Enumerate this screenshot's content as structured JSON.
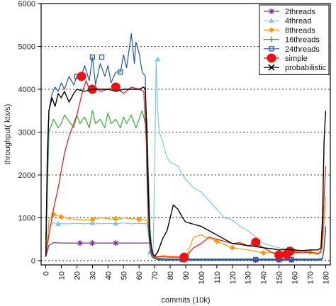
{
  "chart_data": {
    "type": "line",
    "title": "",
    "xlabel": "commits (10k)",
    "ylabel": "throughput( ktx/s)",
    "xlim": [
      -3,
      183
    ],
    "ylim": [
      -100,
      6000
    ],
    "x_ticks": [
      0,
      10,
      20,
      30,
      40,
      50,
      60,
      70,
      80,
      90,
      100,
      110,
      120,
      130,
      140,
      150,
      160,
      170,
      180
    ],
    "x_tick_labels": [
      "0",
      "10",
      "20",
      "30",
      "40",
      "50",
      "60",
      "70",
      "80",
      "90",
      "100",
      "110",
      "120",
      "130",
      "140",
      "150",
      "160",
      "170",
      "180"
    ],
    "y_ticks": [
      0,
      1000,
      2000,
      3000,
      4000,
      5000,
      6000
    ],
    "y_tick_labels": [
      "0",
      "1000",
      "2000",
      "3000",
      "4000",
      "5000",
      "6000"
    ],
    "grid": "horizontal dotted",
    "legend_position": "top-right",
    "series": [
      {
        "name": "2threads",
        "color": "#7b3294",
        "marker": "star",
        "x": [
          0,
          2,
          5,
          10,
          20,
          30,
          40,
          50,
          60,
          65,
          67,
          68,
          69,
          70,
          72,
          75,
          80,
          90,
          100,
          110,
          120,
          130,
          140,
          150,
          160,
          170,
          175,
          177,
          178,
          179,
          180
        ],
        "y": [
          80,
          350,
          420,
          410,
          410,
          410,
          410,
          410,
          410,
          410,
          410,
          300,
          150,
          50,
          20,
          10,
          10,
          10,
          10,
          10,
          10,
          10,
          10,
          10,
          10,
          10,
          10,
          15,
          60,
          300,
          800
        ],
        "marker_x": [
          22,
          30,
          45,
          89,
          135,
          150,
          158
        ],
        "marker_y": [
          410,
          410,
          410,
          10,
          10,
          10,
          10
        ]
      },
      {
        "name": "4thread",
        "color": "#7ec8e3",
        "marker": "triangle",
        "x": [
          0,
          2,
          5,
          10,
          15,
          20,
          25,
          30,
          35,
          40,
          45,
          50,
          55,
          60,
          65,
          66,
          67,
          68,
          69,
          70,
          71,
          72,
          73,
          75,
          78,
          80,
          85,
          88,
          90,
          95,
          100,
          105,
          110,
          115,
          120,
          125,
          130,
          135,
          140,
          145,
          150,
          155,
          160,
          165,
          170,
          175,
          178,
          179,
          180
        ],
        "y": [
          100,
          800,
          880,
          860,
          860,
          870,
          860,
          880,
          860,
          870,
          860,
          880,
          860,
          870,
          860,
          600,
          300,
          150,
          120,
          2000,
          4700,
          3500,
          3000,
          2800,
          2400,
          2300,
          2200,
          2000,
          1900,
          1700,
          1600,
          1400,
          1200,
          1000,
          950,
          800,
          700,
          550,
          400,
          350,
          300,
          260,
          230,
          220,
          200,
          180,
          300,
          900,
          1300
        ],
        "marker_x": [
          8,
          30,
          45,
          67,
          72
        ],
        "marker_y": [
          860,
          880,
          870,
          200,
          4700
        ]
      },
      {
        "name": "8threads",
        "color": "#ff9900",
        "marker": "diamond",
        "x": [
          0,
          2,
          5,
          10,
          15,
          20,
          25,
          30,
          35,
          40,
          45,
          50,
          55,
          60,
          65,
          66,
          67,
          68,
          69,
          70,
          72,
          75,
          80,
          85,
          88,
          90,
          95,
          100,
          110,
          120,
          130,
          140,
          150,
          160,
          170,
          175,
          178,
          179,
          180
        ],
        "y": [
          100,
          950,
          1080,
          1020,
          980,
          960,
          950,
          960,
          1000,
          980,
          950,
          1000,
          980,
          960,
          950,
          700,
          300,
          100,
          60,
          40,
          80,
          120,
          100,
          90,
          80,
          60,
          550,
          600,
          450,
          300,
          250,
          180,
          200,
          220,
          200,
          180,
          300,
          1000,
          1500
        ],
        "marker_x": [
          5,
          10,
          30,
          45,
          60,
          88,
          110,
          120,
          140,
          150,
          160,
          170
        ],
        "marker_y": [
          1080,
          1020,
          960,
          980,
          960,
          60,
          450,
          300,
          180,
          200,
          220,
          200
        ]
      },
      {
        "name": "16threads",
        "color": "#33aa33",
        "marker": "plus",
        "x": [
          0,
          2,
          5,
          8,
          10,
          12,
          15,
          18,
          20,
          22,
          25,
          28,
          30,
          32,
          35,
          38,
          40,
          42,
          45,
          48,
          50,
          52,
          55,
          58,
          60,
          62,
          64,
          65,
          66,
          67,
          68,
          69,
          70,
          72,
          75,
          80,
          90,
          100,
          110,
          120,
          130,
          140,
          150,
          160,
          170,
          175,
          178,
          179,
          180
        ],
        "y": [
          200,
          3000,
          3300,
          3100,
          3200,
          3400,
          3250,
          3100,
          3400,
          3200,
          3350,
          3100,
          3500,
          3200,
          3300,
          3100,
          3450,
          3200,
          3300,
          3100,
          3350,
          3200,
          3400,
          3100,
          3300,
          3500,
          3200,
          3300,
          2000,
          800,
          300,
          120,
          80,
          60,
          50,
          40,
          40,
          40,
          40,
          40,
          40,
          40,
          40,
          40,
          40,
          40,
          60,
          300,
          700
        ],
        "marker_x": [],
        "marker_y": []
      },
      {
        "name": "24threads",
        "color": "#2255aa",
        "marker": "square",
        "x": [
          0,
          2,
          4,
          6,
          8,
          10,
          12,
          15,
          18,
          20,
          22,
          25,
          28,
          30,
          32,
          35,
          38,
          40,
          42,
          45,
          48,
          50,
          52,
          55,
          57,
          58,
          60,
          62,
          64,
          65,
          66,
          67,
          68,
          69,
          70,
          72,
          75,
          80,
          90,
          100,
          110,
          120,
          130,
          140,
          150,
          160,
          170,
          175,
          178,
          179,
          180
        ],
        "y": [
          500,
          3500,
          3900,
          4050,
          3950,
          4150,
          4000,
          4300,
          4100,
          4300,
          4200,
          4550,
          4200,
          4750,
          4100,
          4600,
          4300,
          4550,
          4150,
          4400,
          4400,
          4800,
          4500,
          5300,
          4600,
          5100,
          4850,
          4400,
          4300,
          2000,
          800,
          300,
          120,
          80,
          60,
          40,
          30,
          25,
          25,
          25,
          25,
          25,
          25,
          25,
          25,
          25,
          25,
          25,
          40,
          300,
          800
        ],
        "marker_x": [
          20,
          30,
          36,
          48,
          88,
          135,
          150,
          158
        ],
        "marker_y": [
          4300,
          4750,
          4750,
          4400,
          25,
          25,
          25,
          25
        ]
      },
      {
        "name": "simple",
        "color": "#ee1111",
        "marker": "circle",
        "x": [
          0,
          2,
          5,
          8,
          10,
          12,
          15,
          18,
          20,
          22,
          24,
          26,
          28,
          30,
          35,
          40,
          45,
          50,
          55,
          60,
          63,
          65,
          66,
          67,
          68,
          69,
          70,
          72,
          75,
          80,
          85,
          88,
          90,
          95,
          100,
          105,
          110,
          115,
          120,
          125,
          130,
          135,
          140,
          145,
          150,
          155,
          160,
          165,
          170,
          175,
          177,
          178,
          179,
          180
        ],
        "y": [
          100,
          600,
          1200,
          1700,
          2100,
          2500,
          2900,
          3200,
          3400,
          3700,
          4000,
          4200,
          4000,
          4100,
          3950,
          4000,
          4050,
          3900,
          4050,
          4000,
          3950,
          2500,
          1200,
          500,
          200,
          120,
          100,
          90,
          90,
          80,
          80,
          80,
          80,
          300,
          400,
          550,
          500,
          450,
          400,
          420,
          350,
          400,
          300,
          200,
          120,
          150,
          200,
          180,
          200,
          150,
          200,
          600,
          1500,
          2200
        ],
        "marker_x": [
          23,
          30,
          45,
          89,
          135,
          150,
          155,
          157
        ],
        "marker_y": [
          4300,
          4000,
          4050,
          80,
          430,
          130,
          150,
          220
        ]
      },
      {
        "name": "probabilistic",
        "color": "#000000",
        "marker": "cross",
        "x": [
          0,
          1,
          2,
          4,
          6,
          8,
          10,
          12,
          15,
          18,
          20,
          25,
          30,
          35,
          40,
          45,
          50,
          55,
          60,
          63,
          64,
          65,
          66,
          67,
          68,
          69,
          70,
          72,
          75,
          78,
          80,
          82,
          85,
          88,
          90,
          95,
          100,
          105,
          110,
          115,
          120,
          125,
          130,
          135,
          140,
          145,
          150,
          155,
          160,
          165,
          170,
          175,
          177,
          178,
          179,
          180
        ],
        "y": [
          100,
          2500,
          3500,
          3800,
          3600,
          3900,
          3800,
          3950,
          3700,
          3900,
          4000,
          3950,
          4000,
          4000,
          4000,
          3950,
          4000,
          4000,
          4000,
          4050,
          4000,
          3000,
          1500,
          600,
          300,
          150,
          100,
          200,
          500,
          700,
          1000,
          1300,
          1200,
          1000,
          900,
          850,
          800,
          700,
          600,
          500,
          400,
          380,
          350,
          330,
          300,
          280,
          250,
          260,
          250,
          230,
          250,
          250,
          300,
          1000,
          2800,
          3500
        ],
        "marker_x": [],
        "marker_y": []
      }
    ]
  }
}
